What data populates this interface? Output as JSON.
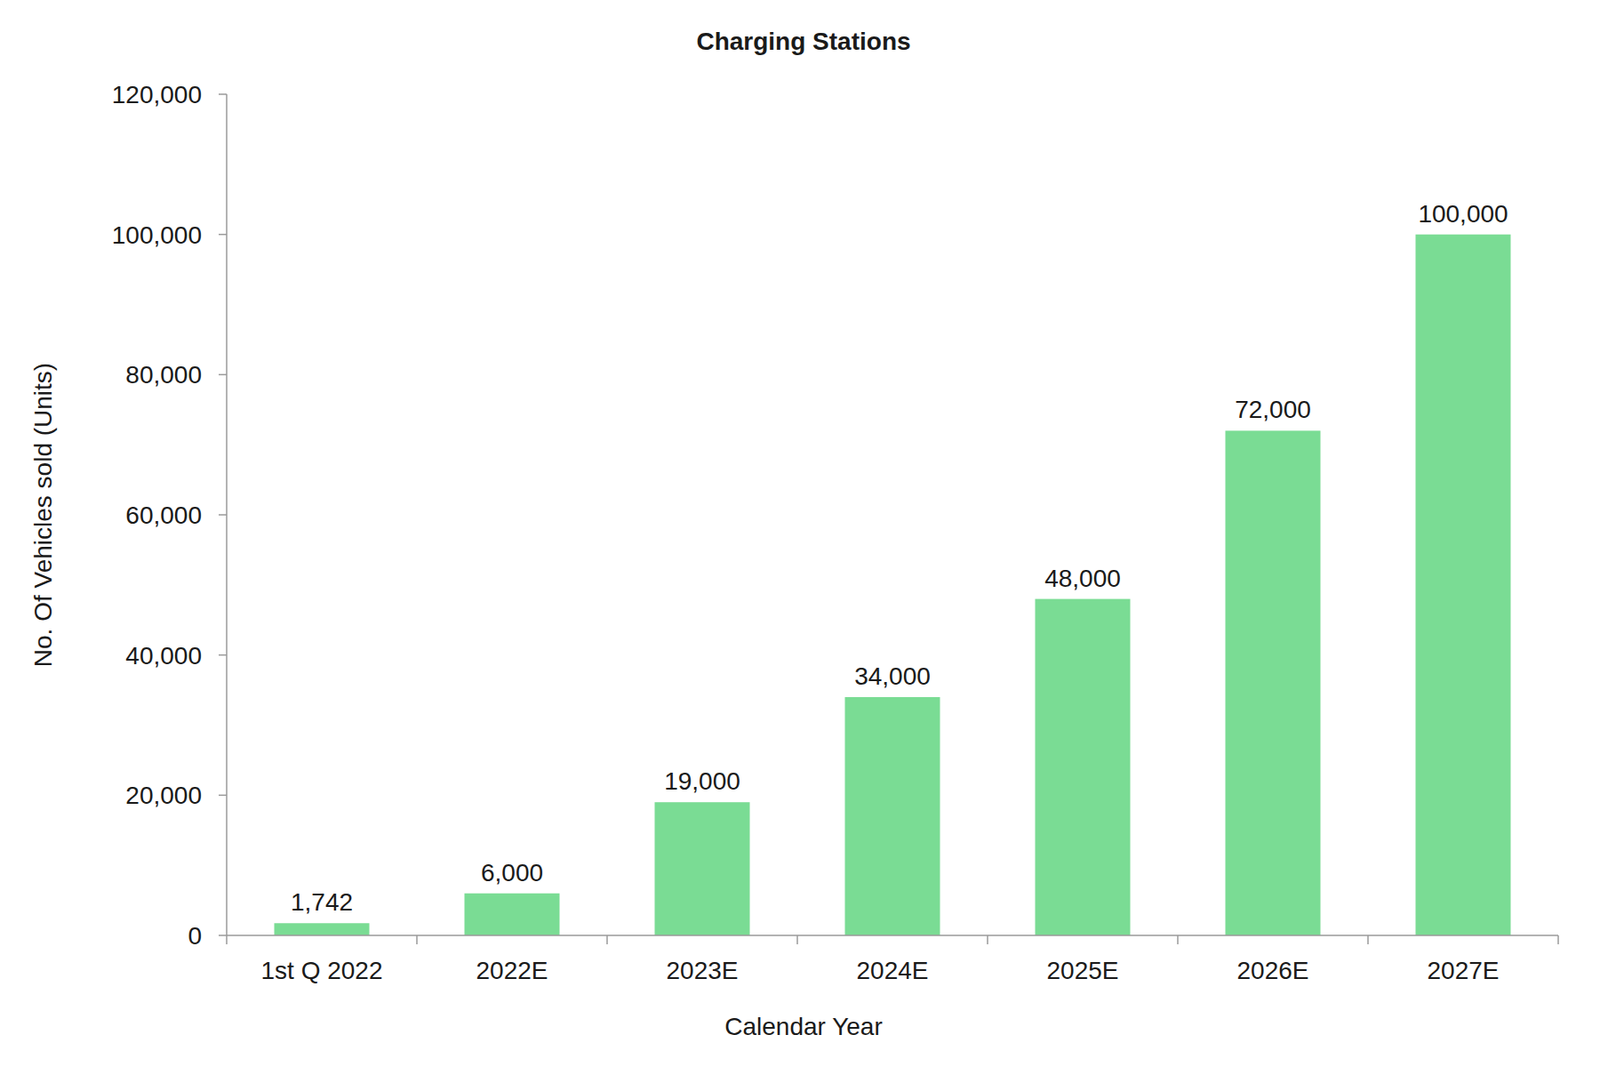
{
  "chart_data": {
    "type": "bar",
    "title": "Charging Stations",
    "x_label": "Calendar Year",
    "y_label": "No. Of Vehicles sold (Units)",
    "categories": [
      "1st Q 2022",
      "2022E",
      "2023E",
      "2024E",
      "2025E",
      "2026E",
      "2027E"
    ],
    "values": [
      1742,
      6000,
      19000,
      34000,
      48000,
      72000,
      100000
    ],
    "value_labels": [
      "1,742",
      "6,000",
      "19,000",
      "34,000",
      "48,000",
      "72,000",
      "100,000"
    ],
    "color": "#7adc94",
    "ylim": [
      0,
      120000
    ],
    "yticks": [
      0,
      {
        "value": 20000,
        "label": "20,000"
      },
      {
        "value": 40000,
        "label": "40,000"
      },
      {
        "value": 60000,
        "label": "60,000"
      },
      {
        "value": 80000,
        "label": "80,000"
      },
      {
        "value": 100000,
        "label": "100,000"
      },
      {
        "value": 120000,
        "label": "120,000"
      }
    ],
    "grid": false,
    "data_labels": true
  }
}
